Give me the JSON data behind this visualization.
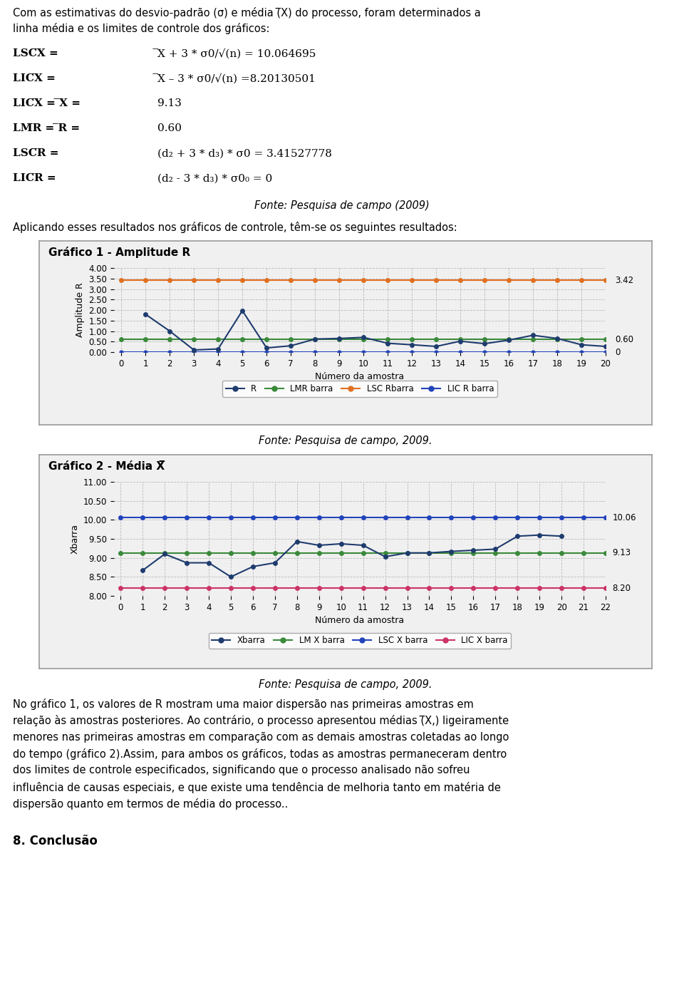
{
  "page_bg": "#ffffff",
  "text_color": "#000000",
  "fonte1": "Fonte: Pesquisa de campo (2009)",
  "apply_text": "Aplicando esses resultados nos gráficos de controle, têm-se os seguintes resultados:",
  "chart1_title": "Gráfico 1 - Amplitude R",
  "chart1_ylabel": "Amplitude R",
  "chart1_xlabel": "Número da amostra",
  "chart1_ylim": [
    0.0,
    4.0
  ],
  "chart1_yticks": [
    0.0,
    0.5,
    1.0,
    1.5,
    2.0,
    2.5,
    3.0,
    3.5,
    4.0
  ],
  "chart1_xticks": [
    0,
    1,
    2,
    3,
    4,
    5,
    6,
    7,
    8,
    9,
    10,
    11,
    12,
    13,
    14,
    15,
    16,
    17,
    18,
    19,
    20
  ],
  "chart1_xlim": [
    -0.3,
    20
  ],
  "chart1_R": [
    1.8,
    1.0,
    0.1,
    0.15,
    1.97,
    0.2,
    0.3,
    0.62,
    0.65,
    0.7,
    0.42,
    0.35,
    0.27,
    0.52,
    0.4,
    0.57,
    0.8,
    0.65,
    0.35,
    0.27
  ],
  "chart1_LMR": 0.6,
  "chart1_LSC": 3.42,
  "chart1_LIC": 0.0,
  "chart1_R_color": "#1f3c6e",
  "chart1_LMR_color": "#3a8a3a",
  "chart1_LSC_color": "#e07020",
  "chart1_LIC_color": "#2244bb",
  "chart1_label_3_42": "3.42",
  "chart1_label_0_60": "0.60",
  "chart1_label_0": "0",
  "chart1_legend": [
    "R",
    "LMR barra",
    "LSC Rbarra",
    "LIC R barra"
  ],
  "fonte_mid": "Fonte: Pesquisa de campo, 2009.",
  "chart2_title": "Gráfico 2 - Média X̅",
  "chart2_ylabel": "Xbarra",
  "chart2_xlabel": "Número da amostra",
  "chart2_ylim": [
    8.0,
    11.0
  ],
  "chart2_yticks": [
    8.0,
    8.5,
    9.0,
    9.5,
    10.0,
    10.5,
    11.0
  ],
  "chart2_xticks": [
    0,
    1,
    2,
    3,
    4,
    5,
    6,
    7,
    8,
    9,
    10,
    11,
    12,
    13,
    14,
    15,
    16,
    17,
    18,
    19,
    20,
    21,
    22
  ],
  "chart2_xlim": [
    -0.3,
    22
  ],
  "chart2_Xbar": [
    8.67,
    9.1,
    8.87,
    8.87,
    8.5,
    8.77,
    8.87,
    9.43,
    9.33,
    9.37,
    9.33,
    9.03,
    9.13,
    9.13,
    9.17,
    9.2,
    9.23,
    9.57,
    9.6,
    9.57
  ],
  "chart2_LM": 9.13,
  "chart2_LSC": 10.06,
  "chart2_LIC": 8.2,
  "chart2_Xbar_color": "#1f3c6e",
  "chart2_LM_color": "#3a8a3a",
  "chart2_LSC_color": "#2244bb",
  "chart2_LIC_color": "#cc3366",
  "chart2_label_10_06": "10.06",
  "chart2_label_9_13": "9.13",
  "chart2_label_8_20": "8.20",
  "chart2_legend": [
    "Xbarra",
    "LM X barra",
    "LSC X barra",
    "LIC X barra"
  ],
  "fonte2": "Fonte: Pesquisa de campo, 2009.",
  "bottom_para": "No gráfico 1, os valores de R mostram uma maior dispersão nas primeiras amostras em relação às amostras posteriores. Ao contrário, o processo apresentou médias (̅X,) ligeiramente menores nas primeiras amostras em comparação com as demais amostras coletadas ao longo do tempo (gráfico 2).Assim, para ambos os gráficos, todas as amostras permaneceram dentro dos limites de controle especificados, significando que o processo analisado não sofreu influência de causas especiais, e que existe uma tendência de melhoria tanto em matéria de dispersão quanto em termos de média do processo..",
  "conclusion": "8. Conclusão"
}
